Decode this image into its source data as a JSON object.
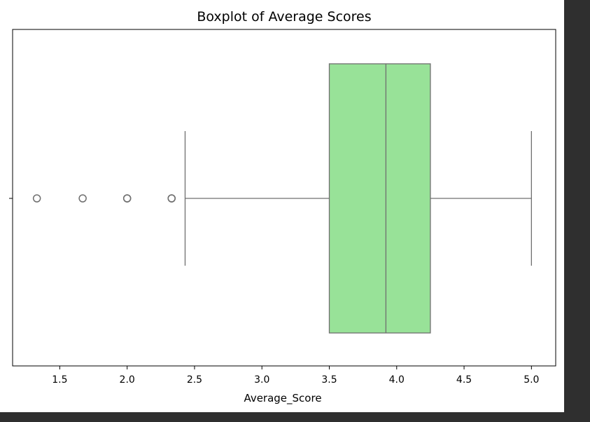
{
  "chart_data": {
    "type": "boxplot",
    "orientation": "horizontal",
    "title": "Boxplot of Average Scores",
    "xlabel": "Average_Score",
    "ylabel": "",
    "xlim": [
      1.15,
      5.18
    ],
    "xticks": [
      1.5,
      2.0,
      2.5,
      3.0,
      3.5,
      4.0,
      4.5,
      5.0
    ],
    "xtick_labels": [
      "1.5",
      "2.0",
      "2.5",
      "3.0",
      "3.5",
      "4.0",
      "4.5",
      "5.0"
    ],
    "grid": false,
    "legend": "none",
    "box": {
      "whisker_low": 2.43,
      "q1": 3.5,
      "median": 3.92,
      "q3": 4.25,
      "whisker_high": 5.0
    },
    "outliers": [
      1.33,
      1.67,
      2.0,
      2.0,
      2.33,
      2.33
    ],
    "colors": {
      "box_fill": "#98e298",
      "line": "#6f6f6f",
      "outlier_edge": "#6f6f6f",
      "axes": "#000000",
      "background": "#ffffff",
      "frame": "#2f2f2f"
    }
  }
}
